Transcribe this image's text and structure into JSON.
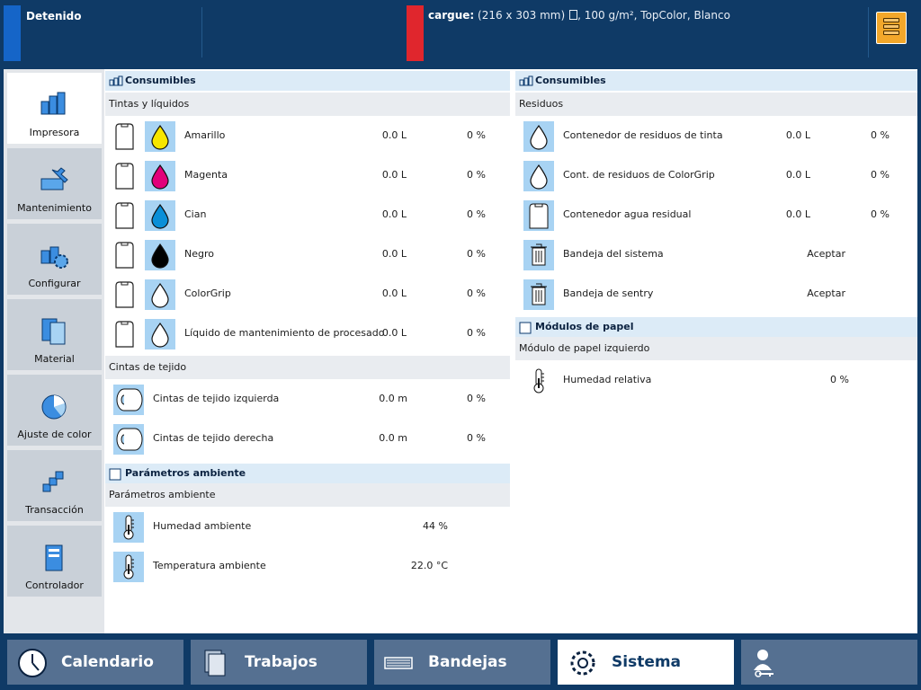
{
  "status": {
    "state": "Detenido",
    "media_label": "cargue:",
    "media_size": "(216 x 303 mm)",
    "media_details": ", 100 g/m², TopColor, Blanco"
  },
  "sidebar": {
    "items": [
      {
        "label": "Impresora",
        "icon": "printer-icon"
      },
      {
        "label": "Mantenimiento",
        "icon": "wrench-icon"
      },
      {
        "label": "Configurar",
        "icon": "configure-icon"
      },
      {
        "label": "Material",
        "icon": "media-icon"
      },
      {
        "label": "Ajuste de color",
        "icon": "color-wheel-icon"
      },
      {
        "label": "Transacción",
        "icon": "transaction-icon"
      },
      {
        "label": "Controlador",
        "icon": "controller-icon"
      }
    ]
  },
  "left_panel": {
    "title": "Consumibles",
    "inks": {
      "title": "Tintas y líquidos",
      "rows": [
        {
          "name": "Amarillo",
          "amount": "0.0 L",
          "percent": "0 %",
          "color": "#f7e600"
        },
        {
          "name": "Magenta",
          "amount": "0.0 L",
          "percent": "0 %",
          "color": "#e2007a"
        },
        {
          "name": "Cian",
          "amount": "0.0 L",
          "percent": "0 %",
          "color": "#0a8fd8"
        },
        {
          "name": "Negro",
          "amount": "0.0 L",
          "percent": "0 %",
          "color": "#000000"
        },
        {
          "name": "ColorGrip",
          "amount": "0.0 L",
          "percent": "0 %",
          "color": "#ffffff"
        },
        {
          "name": "Líquido de mantenimiento de procesado",
          "amount": "0.0 L",
          "percent": "0 %",
          "color": "#ffffff"
        }
      ]
    },
    "tapes": {
      "title": "Cintas de tejido",
      "rows": [
        {
          "name": "Cintas de tejido izquierda",
          "amount": "0.0 m",
          "percent": "0 %"
        },
        {
          "name": "Cintas de tejido derecha",
          "amount": "0.0 m",
          "percent": "0 %"
        }
      ]
    },
    "ambient": {
      "title": "Parámetros ambiente",
      "subtitle": "Parámetros ambiente",
      "rows": [
        {
          "name": "Humedad ambiente",
          "value": "44 %"
        },
        {
          "name": "Temperatura ambiente",
          "value": "22.0 °C"
        }
      ]
    }
  },
  "right_panel": {
    "title": "Consumibles",
    "waste": {
      "title": "Residuos",
      "rows": [
        {
          "name": "Contenedor de residuos de tinta",
          "amount": "0.0 L",
          "percent": "0 %"
        },
        {
          "name": "Cont. de residuos de ColorGrip",
          "amount": "0.0 L",
          "percent": "0 %"
        },
        {
          "name": "Contenedor agua residual",
          "amount": "0.0 L",
          "percent": "0 %"
        },
        {
          "name": "Bandeja del sistema",
          "status": "Aceptar"
        },
        {
          "name": "Bandeja de sentry",
          "status": "Aceptar"
        }
      ]
    },
    "paper_modules": {
      "title": "Módulos de papel",
      "subtitle": "Módulo de papel izquierdo",
      "rows": [
        {
          "name": "Humedad relativa",
          "value": "0 %"
        }
      ]
    }
  },
  "bottom_nav": {
    "items": [
      {
        "label": "Calendario",
        "icon": "clock-icon"
      },
      {
        "label": "Trabajos",
        "icon": "jobs-icon"
      },
      {
        "label": "Bandejas",
        "icon": "trays-icon"
      },
      {
        "label": "Sistema",
        "icon": "gear-icon",
        "active": true
      },
      {
        "label": "",
        "icon": "user-key-icon"
      }
    ]
  }
}
